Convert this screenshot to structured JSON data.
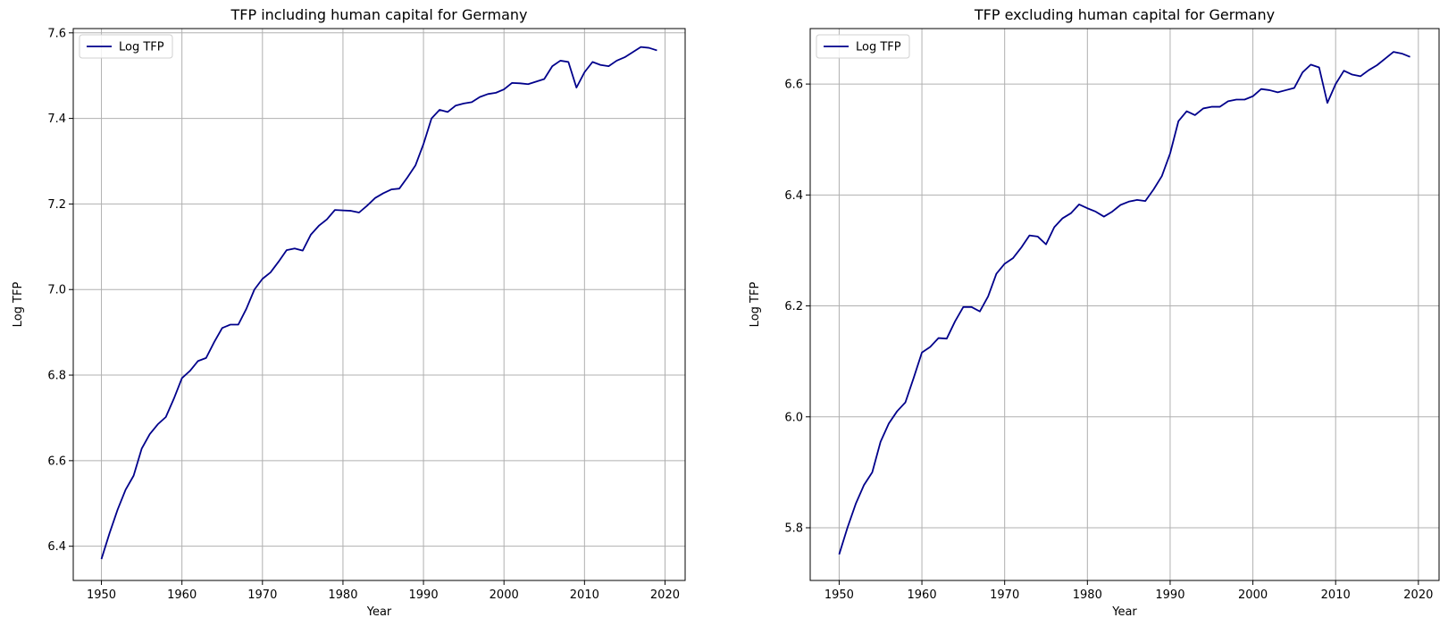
{
  "chart_data": [
    {
      "type": "line",
      "title": "TFP including human capital for Germany",
      "xlabel": "Year",
      "ylabel": "Log TFP",
      "xlim": [
        1946.5,
        2022.5
      ],
      "ylim": [
        6.32,
        7.61
      ],
      "xticks": [
        1950,
        1960,
        1970,
        1980,
        1990,
        2000,
        2010,
        2020
      ],
      "yticks": [
        6.4,
        6.6,
        6.8,
        7.0,
        7.2,
        7.4,
        7.6
      ],
      "ytick_labels": [
        "6.4",
        "6.6",
        "6.8",
        "7.0",
        "7.2",
        "7.4",
        "7.6"
      ],
      "grid": true,
      "legend_position": "top-left",
      "color": "#00008b",
      "series": [
        {
          "name": "Log TFP",
          "x": [
            1950,
            1951,
            1952,
            1953,
            1954,
            1955,
            1956,
            1957,
            1958,
            1959,
            1960,
            1961,
            1962,
            1963,
            1964,
            1965,
            1966,
            1967,
            1968,
            1969,
            1970,
            1971,
            1972,
            1973,
            1974,
            1975,
            1976,
            1977,
            1978,
            1979,
            1980,
            1981,
            1982,
            1983,
            1984,
            1985,
            1986,
            1987,
            1988,
            1989,
            1990,
            1991,
            1992,
            1993,
            1994,
            1995,
            1996,
            1997,
            1998,
            1999,
            2000,
            2001,
            2002,
            2003,
            2004,
            2005,
            2006,
            2007,
            2008,
            2009,
            2010,
            2011,
            2012,
            2013,
            2014,
            2015,
            2016,
            2017,
            2018,
            2019
          ],
          "y": [
            6.37,
            6.43,
            6.485,
            6.532,
            6.565,
            6.628,
            6.662,
            6.685,
            6.702,
            6.745,
            6.793,
            6.81,
            6.833,
            6.84,
            6.877,
            6.91,
            6.918,
            6.918,
            6.955,
            7.0,
            7.025,
            7.04,
            7.065,
            7.092,
            7.096,
            7.091,
            7.128,
            7.149,
            7.164,
            7.186,
            7.185,
            7.184,
            7.18,
            7.196,
            7.214,
            7.225,
            7.234,
            7.236,
            7.262,
            7.29,
            7.34,
            7.4,
            7.42,
            7.415,
            7.43,
            7.435,
            7.438,
            7.45,
            7.457,
            7.46,
            7.468,
            7.483,
            7.482,
            7.48,
            7.486,
            7.492,
            7.522,
            7.535,
            7.532,
            7.472,
            7.508,
            7.532,
            7.525,
            7.522,
            7.535,
            7.543,
            7.555,
            7.567,
            7.565,
            7.559
          ]
        }
      ]
    },
    {
      "type": "line",
      "title": "TFP excluding human capital for Germany",
      "xlabel": "Year",
      "ylabel": "Log TFP",
      "xlim": [
        1946.5,
        2022.5
      ],
      "ylim": [
        5.705,
        6.7
      ],
      "xticks": [
        1950,
        1960,
        1970,
        1980,
        1990,
        2000,
        2010,
        2020
      ],
      "yticks": [
        5.8,
        6.0,
        6.2,
        6.4,
        6.6
      ],
      "ytick_labels": [
        "5.8",
        "6.0",
        "6.2",
        "6.4",
        "6.6"
      ],
      "grid": true,
      "legend_position": "top-left",
      "color": "#00008b",
      "series": [
        {
          "name": "Log TFP",
          "x": [
            1950,
            1951,
            1952,
            1953,
            1954,
            1955,
            1956,
            1957,
            1958,
            1959,
            1960,
            1961,
            1962,
            1963,
            1964,
            1965,
            1966,
            1967,
            1968,
            1969,
            1970,
            1971,
            1972,
            1973,
            1974,
            1975,
            1976,
            1977,
            1978,
            1979,
            1980,
            1981,
            1982,
            1983,
            1984,
            1985,
            1986,
            1987,
            1988,
            1989,
            1990,
            1991,
            1992,
            1993,
            1994,
            1995,
            1996,
            1997,
            1998,
            1999,
            2000,
            2001,
            2002,
            2003,
            2004,
            2005,
            2006,
            2007,
            2008,
            2009,
            2010,
            2011,
            2012,
            2013,
            2014,
            2015,
            2016,
            2017,
            2018,
            2019
          ],
          "y": [
            5.752,
            5.8,
            5.843,
            5.877,
            5.9,
            5.955,
            5.988,
            6.01,
            6.026,
            6.07,
            6.116,
            6.126,
            6.142,
            6.141,
            6.172,
            6.198,
            6.198,
            6.19,
            6.217,
            6.258,
            6.276,
            6.286,
            6.305,
            6.327,
            6.325,
            6.311,
            6.342,
            6.358,
            6.367,
            6.383,
            6.376,
            6.37,
            6.361,
            6.37,
            6.382,
            6.388,
            6.391,
            6.389,
            6.41,
            6.434,
            6.475,
            6.533,
            6.551,
            6.544,
            6.556,
            6.559,
            6.559,
            6.569,
            6.572,
            6.572,
            6.578,
            6.591,
            6.589,
            6.585,
            6.589,
            6.593,
            6.621,
            6.635,
            6.63,
            6.566,
            6.6,
            6.624,
            6.617,
            6.614,
            6.625,
            6.634,
            6.646,
            6.658,
            6.655,
            6.649
          ]
        }
      ]
    }
  ]
}
